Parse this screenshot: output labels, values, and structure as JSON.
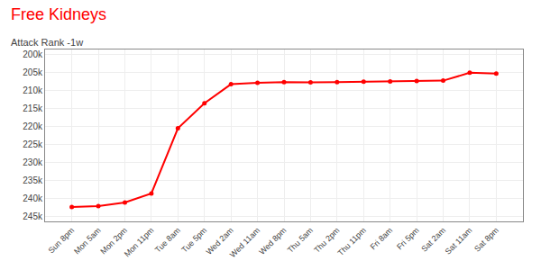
{
  "chart_data": {
    "type": "line",
    "title": "Free Kidneys",
    "subtitle": "Attack Rank -1w",
    "categories": [
      "Sun 8pm",
      "Mon 5am",
      "Mon 2pm",
      "Mon 11pm",
      "Tue 8am",
      "Tue 5pm",
      "Wed 2am",
      "Wed 11am",
      "Wed 8pm",
      "Thu 5am",
      "Thu 2pm",
      "Thu 11pm",
      "Fri 8am",
      "Fri 5pm",
      "Sat 2am",
      "Sat 11am",
      "Sat 8pm"
    ],
    "values": [
      242500,
      242200,
      241200,
      238700,
      220500,
      213500,
      208200,
      207800,
      207600,
      207700,
      207600,
      207500,
      207400,
      207300,
      207200,
      205000,
      205200
    ],
    "color": "#ff0000",
    "marker": "circle",
    "ylim": [
      246500,
      198500
    ],
    "yticks": [
      {
        "value": 200000,
        "label": "200k"
      },
      {
        "value": 205000,
        "label": "205k"
      },
      {
        "value": 210000,
        "label": "210k"
      },
      {
        "value": 215000,
        "label": "215k"
      },
      {
        "value": 220000,
        "label": "220k"
      },
      {
        "value": 225000,
        "label": "225k"
      },
      {
        "value": 230000,
        "label": "230k"
      },
      {
        "value": 235000,
        "label": "235k"
      },
      {
        "value": 240000,
        "label": "240k"
      },
      {
        "value": 245000,
        "label": "245k"
      }
    ],
    "grid": true
  }
}
